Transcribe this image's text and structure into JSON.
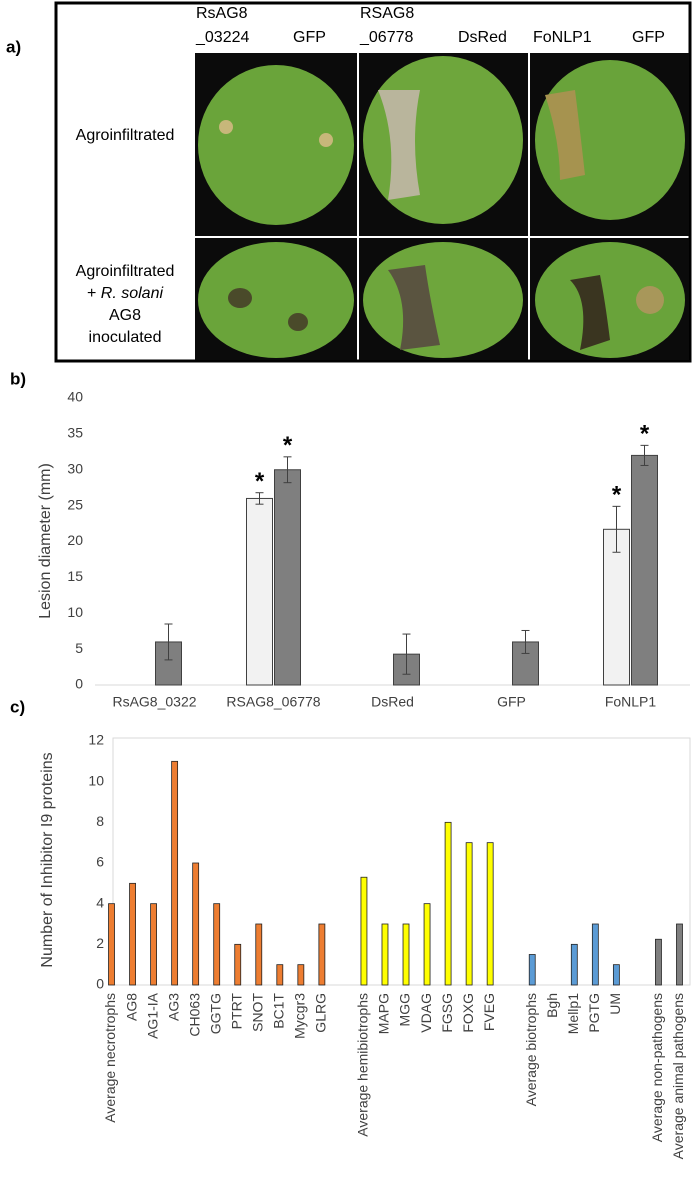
{
  "panel_labels": [
    "a)",
    "b)",
    "c)"
  ],
  "photo_panel": {
    "column_labels": [
      [
        "RsAG8",
        "_03224"
      ],
      [
        "GFP"
      ],
      [
        "RSAG8",
        "_06778"
      ],
      [
        "DsRed"
      ],
      [
        "FoNLP1"
      ],
      [
        "GFP"
      ]
    ],
    "row_labels": [
      [
        "Agroinfiltrated"
      ],
      [
        "Agroinfiltrated",
        "+ ",
        "R. solani",
        "AG8",
        "inoculated"
      ]
    ]
  },
  "chart_data": [
    {
      "type": "bar",
      "y_label": "Lesion diameter (mm)",
      "categories": [
        "RsAG8_0322",
        "RSAG8_06778",
        "DsRed",
        "GFP",
        "FoNLP1"
      ],
      "series": [
        {
          "color": "#f2f2f2",
          "values": [
            null,
            26,
            null,
            null,
            21.7
          ],
          "errors": [
            null,
            0.8,
            null,
            null,
            3.2
          ],
          "markers": [
            null,
            "*",
            null,
            null,
            "*"
          ]
        },
        {
          "color": "#7f7f7f",
          "values": [
            6,
            30,
            4.3,
            6,
            32
          ],
          "errors": [
            2.5,
            1.8,
            2.8,
            1.6,
            1.4
          ],
          "markers": [
            null,
            "*",
            null,
            null,
            "*"
          ]
        }
      ],
      "ylim": [
        0,
        40
      ],
      "yticks": [
        0,
        5,
        10,
        15,
        20,
        25,
        30,
        35,
        40
      ],
      "grid": false
    },
    {
      "type": "bar",
      "y_label": "Number of Inhibitor I9 proteins",
      "categories": [
        "Average necrotrophs",
        "AG8",
        "AG1-IA",
        "AG3",
        "CH063",
        "GGTG",
        "PTRT",
        "SNOT",
        "BC1T",
        "Mycgr3",
        "GLRG",
        null,
        "Average hemibiotrophs",
        "MAPG",
        "MGG",
        "VDAG",
        "FGSG",
        "FOXG",
        "FVEG",
        null,
        "Average biotrophs",
        "Bgh",
        "Mellp1",
        "PGTG",
        "UM",
        null,
        "Average non-pathogens",
        "Average animal pathogens"
      ],
      "values": [
        4,
        5,
        4,
        11,
        6,
        4,
        2,
        3,
        1,
        1,
        3,
        null,
        5.3,
        3,
        3,
        4,
        8,
        7,
        7,
        null,
        1.5,
        0,
        2,
        3,
        1,
        null,
        2.25,
        3
      ],
      "colors": [
        "#ed7d31",
        "#ed7d31",
        "#ed7d31",
        "#ed7d31",
        "#ed7d31",
        "#ed7d31",
        "#ed7d31",
        "#ed7d31",
        "#ed7d31",
        "#ed7d31",
        "#ed7d31",
        null,
        "#ffff00",
        "#ffff00",
        "#ffff00",
        "#ffff00",
        "#ffff00",
        "#ffff00",
        "#ffff00",
        null,
        "#5b9bd5",
        "#5b9bd5",
        "#5b9bd5",
        "#5b9bd5",
        "#5b9bd5",
        null,
        "#7f7f7f",
        "#7f7f7f"
      ],
      "ylim": [
        0,
        12
      ],
      "yticks": [
        0,
        2,
        4,
        6,
        8,
        10,
        12
      ],
      "grid": false
    }
  ]
}
